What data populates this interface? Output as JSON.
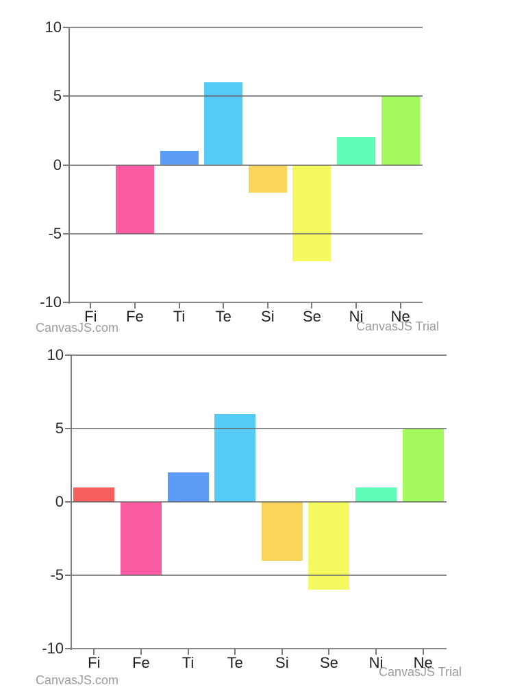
{
  "page": {
    "background": "#ffffff"
  },
  "axis_style": {
    "grid_color": "#646464",
    "axis_line_color": "#7a7a7a",
    "tick_label_color": "#2b2b2b"
  },
  "watermark": {
    "left_label": "CanvasJS.com",
    "right_label": "CanvasJS Trial",
    "color": "#9b9b9b"
  },
  "chart_data": [
    {
      "type": "bar",
      "title": "",
      "xlabel": "",
      "ylabel": "",
      "categories": [
        "Fi",
        "Fe",
        "Ti",
        "Te",
        "Si",
        "Se",
        "Ni",
        "Ne"
      ],
      "values": [
        0,
        -5,
        1,
        6,
        -2,
        -7,
        2,
        5
      ],
      "bar_colors": [
        "#f8605f",
        "#fb5ba2",
        "#5b9cf7",
        "#57cbf8",
        "#fbd45c",
        "#f4f95f",
        "#5cfcb8",
        "#a4f95d"
      ],
      "ylim": [
        -10,
        10
      ],
      "y_interval": 5,
      "y_tick_labels": [
        "10",
        "5",
        "0",
        "-5",
        "-10"
      ],
      "grid": true,
      "legend": "none",
      "watermark_left": "CanvasJS.com",
      "watermark_right": "CanvasJS Trial"
    },
    {
      "type": "bar",
      "title": "",
      "xlabel": "",
      "ylabel": "",
      "categories": [
        "Fi",
        "Fe",
        "Ti",
        "Te",
        "Si",
        "Se",
        "Ni",
        "Ne"
      ],
      "values": [
        1,
        -5,
        2,
        6,
        -4,
        -6,
        1,
        5
      ],
      "bar_colors": [
        "#f8605f",
        "#fb5ba2",
        "#5b9cf7",
        "#57cbf8",
        "#fbd45c",
        "#f4f95f",
        "#5cfcb8",
        "#a4f95d"
      ],
      "ylim": [
        -10,
        10
      ],
      "y_interval": 5,
      "y_tick_labels": [
        "10",
        "5",
        "0",
        "-5",
        "-10"
      ],
      "grid": true,
      "legend": "none",
      "watermark_left": "CanvasJS.com",
      "watermark_right": "CanvasJS Trial"
    }
  ]
}
